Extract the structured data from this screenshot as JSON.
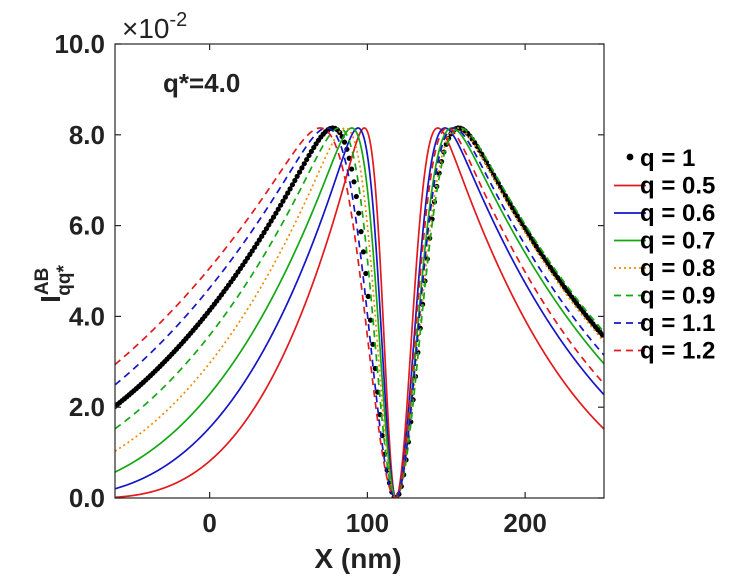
{
  "chart_data": {
    "type": "line",
    "xlabel": "X (nm)",
    "ylabel": {
      "base": "I",
      "superscript": "AB",
      "subscript": "qq*"
    },
    "exponent": {
      "prefix": "×10",
      "power": "-2"
    },
    "annotation": "q*=4.0",
    "xlim": [
      -60,
      250
    ],
    "ylim": [
      0,
      10
    ],
    "xticks": [
      0,
      100,
      200
    ],
    "yticks": [
      "0.0",
      "2.0",
      "4.0",
      "6.0",
      "8.0",
      "10.0"
    ],
    "ytick_values": [
      0,
      2,
      4,
      6,
      8,
      10
    ],
    "grid": false,
    "legend_position": "right",
    "x_center": 118,
    "peak": 8.15,
    "series": [
      {
        "name": "q = 1",
        "q": 1.0,
        "color": "#000000",
        "style": "dots"
      },
      {
        "name": "q = 0.5",
        "q": 0.5,
        "color": "#e31a1c",
        "style": "solid"
      },
      {
        "name": "q = 0.6",
        "q": 0.6,
        "color": "#1515c8",
        "style": "solid"
      },
      {
        "name": "q = 0.7",
        "q": 0.7,
        "color": "#13a813",
        "style": "solid"
      },
      {
        "name": "q = 0.8",
        "q": 0.8,
        "color": "#f08a00",
        "style": "dotted"
      },
      {
        "name": "q = 0.9",
        "q": 0.9,
        "color": "#13a813",
        "style": "dashed"
      },
      {
        "name": "q = 1.1",
        "q": 1.1,
        "color": "#1515c8",
        "style": "dashed"
      },
      {
        "name": "q = 1.2",
        "q": 1.2,
        "color": "#e31a1c",
        "style": "dashed"
      }
    ]
  }
}
